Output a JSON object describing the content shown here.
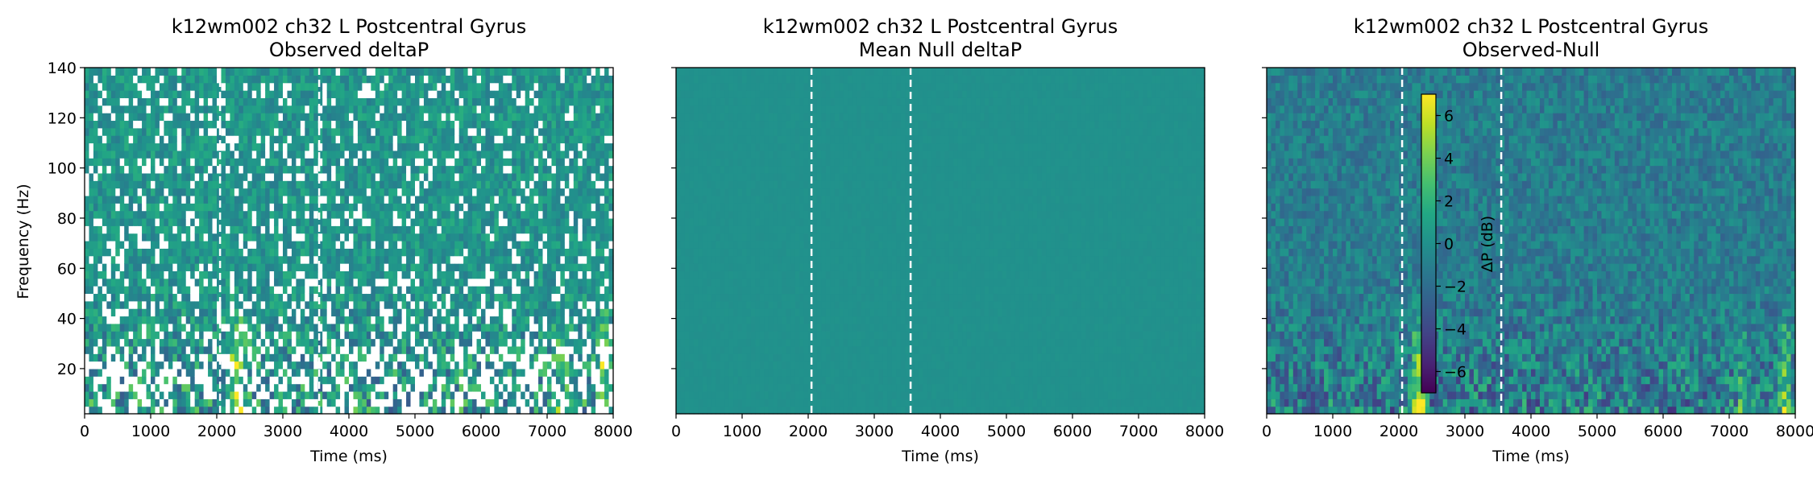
{
  "figure": {
    "colormap": "viridis",
    "marker_color": "#ffffff",
    "nan_color": "#ffffff"
  },
  "chart_data": [
    {
      "type": "heatmap",
      "title": "k12wm002 ch32 L Postcentral Gyrus",
      "subtitle": "Observed deltaP",
      "xlabel": "Time (ms)",
      "ylabel": "Frequency (Hz)",
      "xlim": [
        0,
        8000
      ],
      "ylim": [
        2,
        140
      ],
      "xticks": [
        "0",
        "1000",
        "2000",
        "3000",
        "4000",
        "5000",
        "6000",
        "7000",
        "8000"
      ],
      "yticks": [
        "20",
        "40",
        "60",
        "80",
        "100",
        "120",
        "140"
      ],
      "event_markers_ms": [
        2050,
        3550
      ],
      "has_missing_values": true
    },
    {
      "type": "heatmap",
      "title": "k12wm002 ch32 L Postcentral Gyrus",
      "subtitle": "Mean Null deltaP",
      "xlabel": "Time (ms)",
      "ylabel": "",
      "xlim": [
        0,
        8000
      ],
      "ylim": [
        2,
        140
      ],
      "xticks": [
        "0",
        "1000",
        "2000",
        "3000",
        "4000",
        "5000",
        "6000",
        "7000",
        "8000"
      ],
      "yticks": [],
      "event_markers_ms": [
        2050,
        3550
      ],
      "has_missing_values": false
    },
    {
      "type": "heatmap",
      "title": "k12wm002 ch32 L Postcentral Gyrus",
      "subtitle": "Observed-Null",
      "xlabel": "Time (ms)",
      "ylabel": "",
      "xlim": [
        0,
        8000
      ],
      "ylim": [
        2,
        140
      ],
      "xticks": [
        "0",
        "1000",
        "2000",
        "3000",
        "4000",
        "5000",
        "6000",
        "7000",
        "8000"
      ],
      "yticks": [],
      "event_markers_ms": [
        2050,
        3550
      ],
      "has_missing_values": false,
      "colorbar": {
        "label": "ΔP (dB)",
        "ticks": [
          "−6",
          "−4",
          "−2",
          "0",
          "2",
          "4",
          "6"
        ],
        "range": [
          -7,
          7
        ]
      }
    }
  ]
}
